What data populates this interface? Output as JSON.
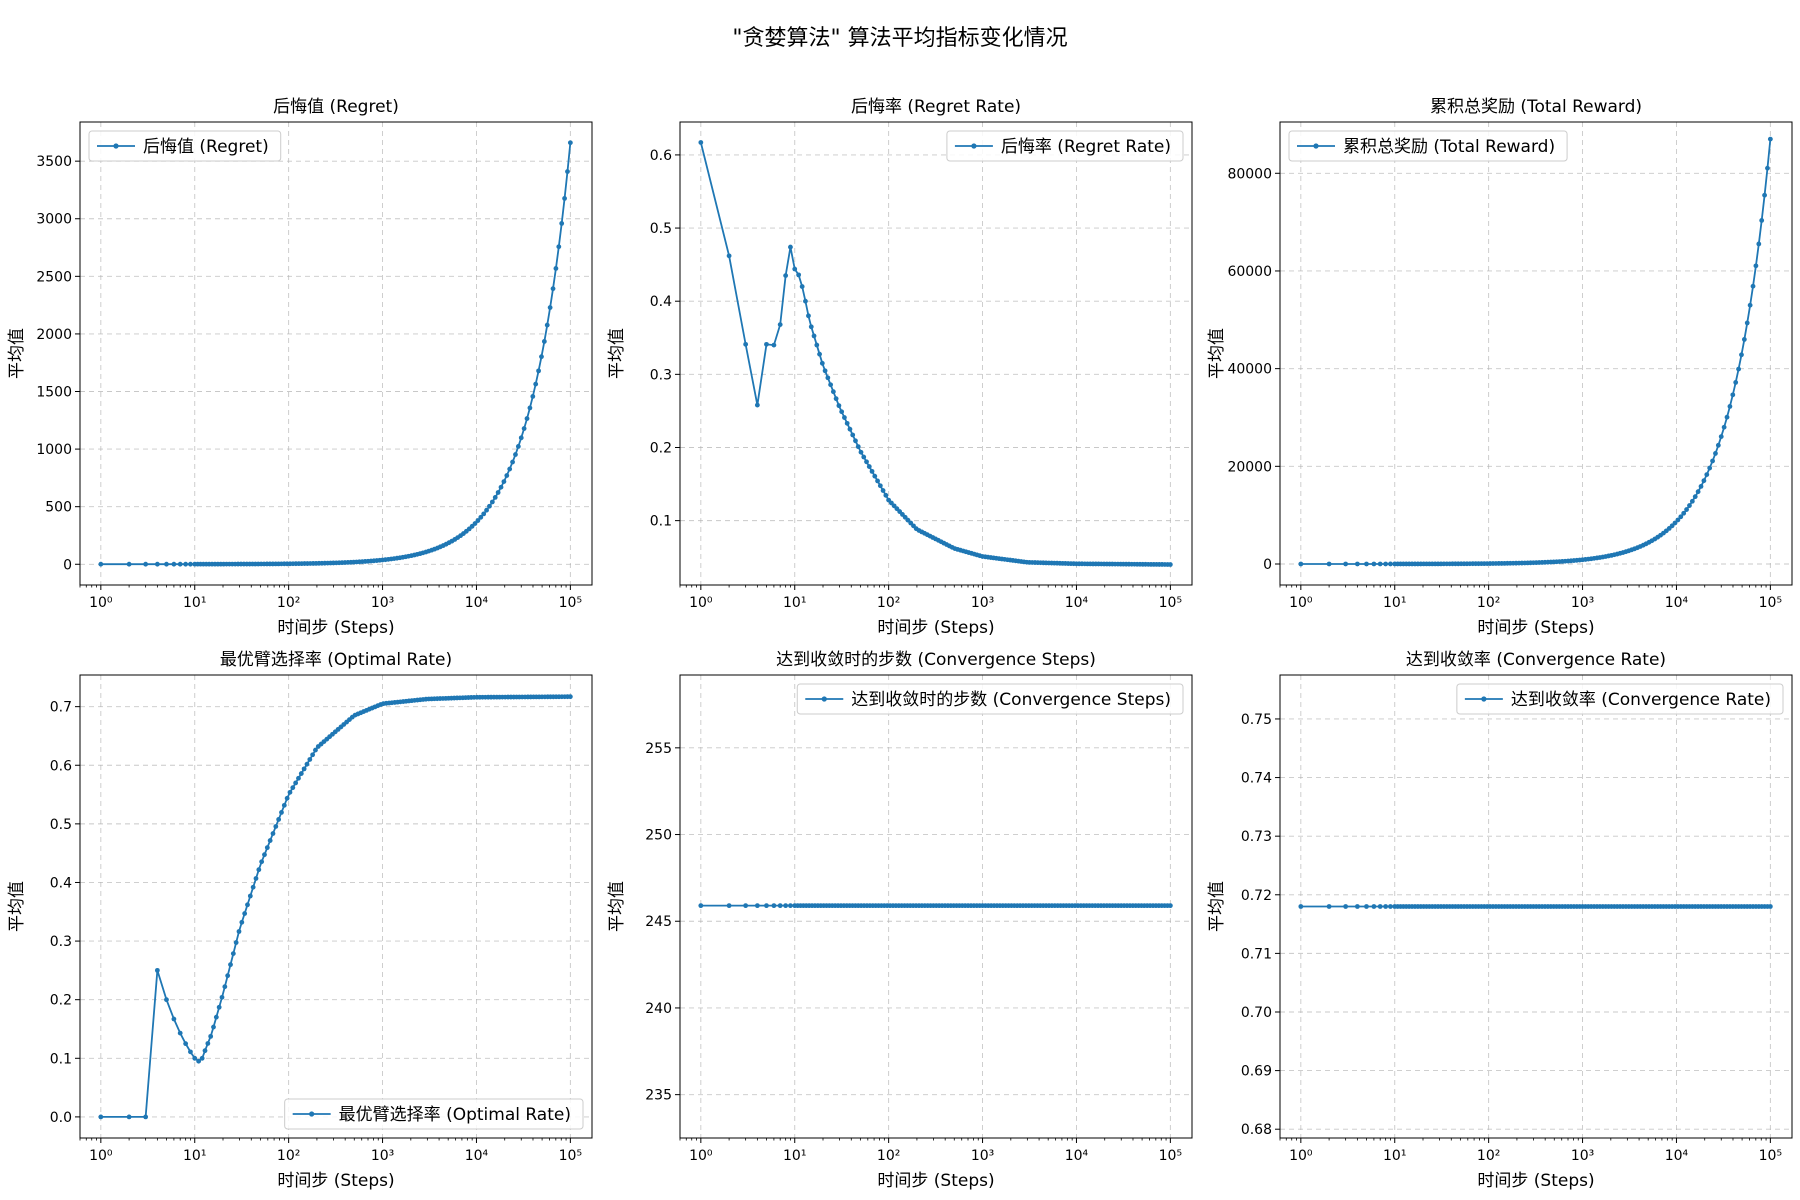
{
  "figure": {
    "title": "\"贪婪算法\" 算法平均指标变化情况"
  },
  "colors": {
    "series": "#1f77b4",
    "grid": "#b0b0b0",
    "axis": "#000000",
    "legend_border": "#cccccc"
  },
  "chart_data": [
    {
      "type": "line",
      "title": "后悔值 (Regret)",
      "xlabel": "时间步 (Steps)",
      "ylabel": "平均值",
      "xscale": "log",
      "xlim": [
        0.6,
        170000
      ],
      "ylim": [
        -180,
        3840
      ],
      "xticks": [
        1,
        10,
        100,
        1000,
        10000,
        100000
      ],
      "xtick_labels": [
        "10⁰",
        "10¹",
        "10²",
        "10³",
        "10⁴",
        "10⁵"
      ],
      "yticks": [
        0,
        500,
        1000,
        1500,
        2000,
        2500,
        3000,
        3500
      ],
      "ytick_labels": [
        "0",
        "500",
        "1000",
        "1500",
        "2000",
        "2500",
        "3000",
        "3500"
      ],
      "grid": true,
      "legend": {
        "label": "后悔值 (Regret)",
        "position": "upper-left"
      },
      "series": [
        {
          "name": "后悔值 (Regret)",
          "kind": "linear-growth",
          "x_start": 1,
          "x_end": 100000,
          "y_start": 0.6,
          "y_end": 3660,
          "marker_count": 130
        }
      ]
    },
    {
      "type": "line",
      "title": "后悔率 (Regret Rate)",
      "xlabel": "时间步 (Steps)",
      "ylabel": "平均值",
      "xscale": "log",
      "xlim": [
        0.6,
        170000
      ],
      "ylim": [
        0.012,
        0.645
      ],
      "xticks": [
        1,
        10,
        100,
        1000,
        10000,
        100000
      ],
      "xtick_labels": [
        "10⁰",
        "10¹",
        "10²",
        "10³",
        "10⁴",
        "10⁵"
      ],
      "yticks": [
        0.1,
        0.2,
        0.3,
        0.4,
        0.5,
        0.6
      ],
      "ytick_labels": [
        "0.1",
        "0.2",
        "0.3",
        "0.4",
        "0.5",
        "0.6"
      ],
      "grid": true,
      "legend": {
        "label": "后悔率 (Regret Rate)",
        "position": "upper-right"
      },
      "series": [
        {
          "name": "后悔率 (Regret Rate)",
          "kind": "points-then-interp",
          "points": [
            [
              1,
              0.617
            ],
            [
              2,
              0.462
            ],
            [
              3,
              0.341
            ],
            [
              4,
              0.258
            ],
            [
              5,
              0.341
            ],
            [
              6,
              0.34
            ],
            [
              7,
              0.368
            ],
            [
              8,
              0.435
            ],
            [
              9,
              0.474
            ],
            [
              10,
              0.444
            ],
            [
              11,
              0.436
            ],
            [
              12,
              0.42
            ],
            [
              13,
              0.4
            ],
            [
              14,
              0.38
            ],
            [
              15,
              0.365
            ],
            [
              20,
              0.312
            ],
            [
              30,
              0.255
            ],
            [
              50,
              0.195
            ],
            [
              100,
              0.128
            ],
            [
              200,
              0.088
            ],
            [
              500,
              0.062
            ],
            [
              1000,
              0.051
            ],
            [
              3000,
              0.043
            ],
            [
              10000,
              0.041
            ],
            [
              100000,
              0.04
            ]
          ],
          "interp_from": 15,
          "marker_count": 130
        }
      ]
    },
    {
      "type": "line",
      "title": "累积总奖励 (Total Reward)",
      "xlabel": "时间步 (Steps)",
      "ylabel": "平均值",
      "xscale": "log",
      "xlim": [
        0.6,
        170000
      ],
      "ylim": [
        -4300,
        90500
      ],
      "xticks": [
        1,
        10,
        100,
        1000,
        10000,
        100000
      ],
      "xtick_labels": [
        "10⁰",
        "10¹",
        "10²",
        "10³",
        "10⁴",
        "10⁵"
      ],
      "yticks": [
        0,
        20000,
        40000,
        60000,
        80000
      ],
      "ytick_labels": [
        "0",
        "20000",
        "40000",
        "60000",
        "80000"
      ],
      "grid": true,
      "legend": {
        "label": "累积总奖励 (Total Reward)",
        "position": "upper-left"
      },
      "series": [
        {
          "name": "累积总奖励 (Total Reward)",
          "kind": "linear-growth",
          "x_start": 1,
          "x_end": 100000,
          "y_start": 0.4,
          "y_end": 87000,
          "marker_count": 130
        }
      ]
    },
    {
      "type": "line",
      "title": "最优臂选择率 (Optimal Rate)",
      "xlabel": "时间步 (Steps)",
      "ylabel": "平均值",
      "xscale": "log",
      "xlim": [
        0.6,
        170000
      ],
      "ylim": [
        -0.036,
        0.754
      ],
      "xticks": [
        1,
        10,
        100,
        1000,
        10000,
        100000
      ],
      "xtick_labels": [
        "10⁰",
        "10¹",
        "10²",
        "10³",
        "10⁴",
        "10⁵"
      ],
      "yticks": [
        0.0,
        0.1,
        0.2,
        0.3,
        0.4,
        0.5,
        0.6,
        0.7
      ],
      "ytick_labels": [
        "0.0",
        "0.1",
        "0.2",
        "0.3",
        "0.4",
        "0.5",
        "0.6",
        "0.7"
      ],
      "grid": true,
      "legend": {
        "label": "最优臂选择率 (Optimal Rate)",
        "position": "lower-right"
      },
      "series": [
        {
          "name": "最优臂选择率 (Optimal Rate)",
          "kind": "points-then-interp",
          "points": [
            [
              1,
              0.0
            ],
            [
              2,
              0.0
            ],
            [
              3,
              0.0
            ],
            [
              4,
              0.25
            ],
            [
              5,
              0.2
            ],
            [
              6,
              0.167
            ],
            [
              7,
              0.143
            ],
            [
              8,
              0.125
            ],
            [
              9,
              0.111
            ],
            [
              10,
              0.1
            ],
            [
              11,
              0.095
            ],
            [
              12,
              0.1
            ],
            [
              13,
              0.115
            ],
            [
              15,
              0.14
            ],
            [
              20,
              0.21
            ],
            [
              30,
              0.32
            ],
            [
              50,
              0.43
            ],
            [
              100,
              0.55
            ],
            [
              200,
              0.63
            ],
            [
              500,
              0.685
            ],
            [
              1000,
              0.705
            ],
            [
              3000,
              0.713
            ],
            [
              10000,
              0.716
            ],
            [
              100000,
              0.717
            ]
          ],
          "interp_from": 12,
          "marker_count": 130
        }
      ]
    },
    {
      "type": "line",
      "title": "达到收敛时的步数 (Convergence Steps)",
      "xlabel": "时间步 (Steps)",
      "ylabel": "平均值",
      "xscale": "log",
      "xlim": [
        0.6,
        170000
      ],
      "ylim": [
        232.5,
        259.2
      ],
      "xticks": [
        1,
        10,
        100,
        1000,
        10000,
        100000
      ],
      "xtick_labels": [
        "10⁰",
        "10¹",
        "10²",
        "10³",
        "10⁴",
        "10⁵"
      ],
      "yticks": [
        235,
        240,
        245,
        250,
        255
      ],
      "ytick_labels": [
        "235",
        "240",
        "245",
        "250",
        "255"
      ],
      "grid": true,
      "legend": {
        "label": "达到收敛时的步数 (Convergence Steps)",
        "position": "upper-right"
      },
      "series": [
        {
          "name": "达到收敛时的步数 (Convergence Steps)",
          "kind": "constant",
          "x_start": 1,
          "x_end": 100000,
          "value": 245.9,
          "marker_count": 130
        }
      ]
    },
    {
      "type": "line",
      "title": "达到收敛率 (Convergence Rate)",
      "xlabel": "时间步 (Steps)",
      "ylabel": "平均值",
      "xscale": "log",
      "xlim": [
        0.6,
        170000
      ],
      "ylim": [
        0.6785,
        0.7575
      ],
      "xticks": [
        1,
        10,
        100,
        1000,
        10000,
        100000
      ],
      "xtick_labels": [
        "10⁰",
        "10¹",
        "10²",
        "10³",
        "10⁴",
        "10⁵"
      ],
      "yticks": [
        0.68,
        0.69,
        0.7,
        0.71,
        0.72,
        0.73,
        0.74,
        0.75
      ],
      "ytick_labels": [
        "0.68",
        "0.69",
        "0.70",
        "0.71",
        "0.72",
        "0.73",
        "0.74",
        "0.75"
      ],
      "grid": true,
      "legend": {
        "label": "达到收敛率 (Convergence Rate)",
        "position": "upper-right"
      },
      "series": [
        {
          "name": "达到收敛率 (Convergence Rate)",
          "kind": "constant",
          "x_start": 1,
          "x_end": 100000,
          "value": 0.718,
          "marker_count": 130
        }
      ]
    }
  ]
}
